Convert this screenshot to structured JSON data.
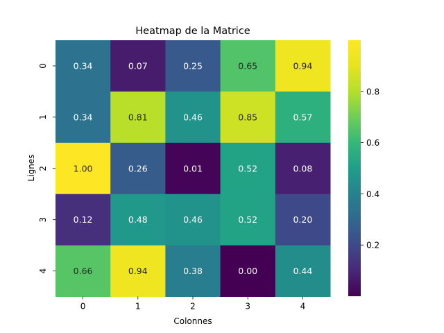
{
  "chart_data": {
    "type": "heatmap",
    "title": "Heatmap de la Matrice",
    "xlabel": "Colonnes",
    "ylabel": "Lignes",
    "x_categories": [
      "0",
      "1",
      "2",
      "3",
      "4"
    ],
    "y_categories": [
      "0",
      "1",
      "2",
      "3",
      "4"
    ],
    "values": [
      [
        0.34,
        0.07,
        0.25,
        0.65,
        0.94
      ],
      [
        0.34,
        0.81,
        0.46,
        0.85,
        0.57
      ],
      [
        1.0,
        0.26,
        0.01,
        0.52,
        0.08
      ],
      [
        0.12,
        0.48,
        0.46,
        0.52,
        0.2
      ],
      [
        0.66,
        0.94,
        0.38,
        0.0,
        0.44
      ]
    ],
    "value_labels": [
      [
        "0.34",
        "0.07",
        "0.25",
        "0.65",
        "0.94"
      ],
      [
        "0.34",
        "0.81",
        "0.46",
        "0.85",
        "0.57"
      ],
      [
        "1.00",
        "0.26",
        "0.01",
        "0.52",
        "0.08"
      ],
      [
        "0.12",
        "0.48",
        "0.46",
        "0.52",
        "0.20"
      ],
      [
        "0.66",
        "0.94",
        "0.38",
        "0.00",
        "0.44"
      ]
    ],
    "colormap": "viridis",
    "color_range": [
      0.0,
      1.0
    ],
    "colorbar": {
      "ticks": [
        0.2,
        0.4,
        0.6,
        0.8
      ],
      "tick_labels": [
        "0.2",
        "0.4",
        "0.6",
        "0.8"
      ],
      "placement": "right"
    }
  }
}
